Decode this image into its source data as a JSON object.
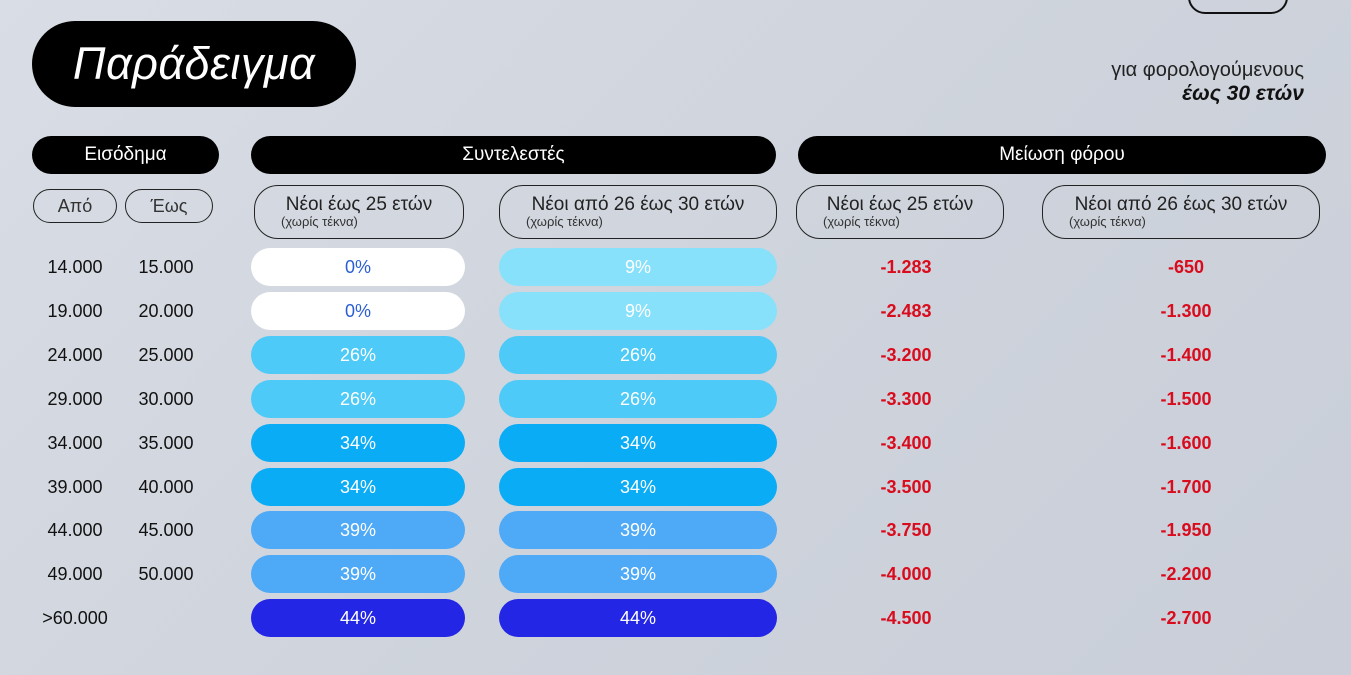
{
  "title": "Παράδειγμα",
  "subtitle": {
    "line1": "για φορολογούμενους",
    "line2": "έως 30 ετών"
  },
  "headers": {
    "income": "Εισόδημα",
    "rates": "Συντελεστές",
    "reduction": "Μείωση φόρου"
  },
  "income_cols": {
    "from": "Από",
    "to": "Έως"
  },
  "groups": {
    "young25": {
      "label": "Νέοι έως 25 ετών",
      "note": "(χωρίς τέκνα)"
    },
    "young26_30": {
      "label": "Νέοι από 26 έως 30 ετών",
      "note": "(χωρίς τέκνα)"
    }
  },
  "colors": {
    "c0": "#ffffff",
    "c9": "#87e1fb",
    "c26": "#4dcaf7",
    "c34": "#0aacf5",
    "c39": "#4ea9f6",
    "c44": "#2326e4",
    "red": "#d90b1c"
  },
  "rows": [
    {
      "from": "14.000",
      "to": "15.000",
      "rate25": "0%",
      "rate30": "9%",
      "red25": "-1.283",
      "red30": "-650"
    },
    {
      "from": "19.000",
      "to": "20.000",
      "rate25": "0%",
      "rate30": "9%",
      "red25": "-2.483",
      "red30": "-1.300"
    },
    {
      "from": "24.000",
      "to": "25.000",
      "rate25": "26%",
      "rate30": "26%",
      "red25": "-3.200",
      "red30": "-1.400"
    },
    {
      "from": "29.000",
      "to": "30.000",
      "rate25": "26%",
      "rate30": "26%",
      "red25": "-3.300",
      "red30": "-1.500"
    },
    {
      "from": "34.000",
      "to": "35.000",
      "rate25": "34%",
      "rate30": "34%",
      "red25": "-3.400",
      "red30": "-1.600"
    },
    {
      "from": "39.000",
      "to": "40.000",
      "rate25": "34%",
      "rate30": "34%",
      "red25": "-3.500",
      "red30": "-1.700"
    },
    {
      "from": "44.000",
      "to": "45.000",
      "rate25": "39%",
      "rate30": "39%",
      "red25": "-3.750",
      "red30": "-1.950"
    },
    {
      "from": "49.000",
      "to": "50.000",
      "rate25": "39%",
      "rate30": "39%",
      "red25": "-4.000",
      "red30": "-2.200"
    },
    {
      "from": ">60.000",
      "to": "",
      "rate25": "44%",
      "rate30": "44%",
      "red25": "-4.500",
      "red30": "-2.700"
    }
  ]
}
